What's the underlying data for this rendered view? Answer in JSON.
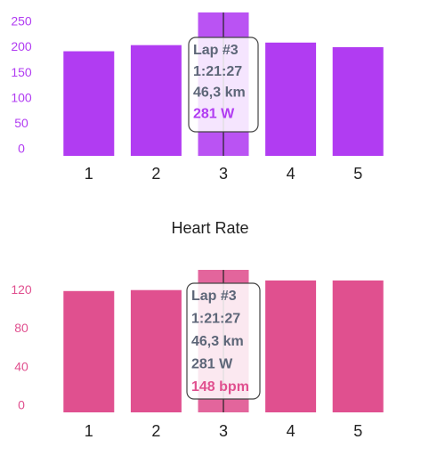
{
  "chart_data": [
    {
      "type": "bar",
      "categories": [
        "1",
        "2",
        "3",
        "4",
        "5"
      ],
      "values": [
        205,
        217,
        281,
        222,
        213
      ],
      "color": "#b13cf2",
      "ylim": [
        0,
        281
      ],
      "yticks": [
        0,
        50,
        100,
        150,
        200,
        250
      ],
      "selected": 2,
      "tooltip": [
        "Lap #3",
        "1:21:27",
        "46,3 km",
        "281 W"
      ]
    },
    {
      "type": "bar",
      "title": "Heart Rate",
      "categories": [
        "1",
        "2",
        "3",
        "4",
        "5"
      ],
      "values": [
        126,
        127,
        148,
        137,
        137
      ],
      "color": "#e0508f",
      "ylim": [
        0,
        148
      ],
      "yticks": [
        0,
        40,
        80,
        120
      ],
      "selected": 2,
      "tooltip": [
        "Lap #3",
        "1:21:27",
        "46,3 km",
        "281 W",
        "148 bpm"
      ]
    }
  ]
}
